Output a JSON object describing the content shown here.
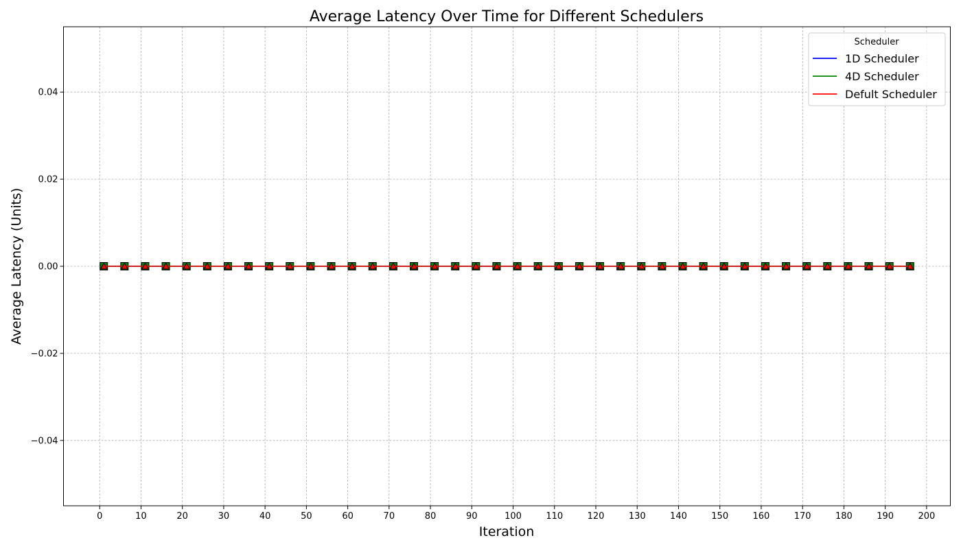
{
  "chart_data": {
    "type": "line",
    "title": "Average Latency Over Time for Different Schedulers",
    "xlabel": "Iteration",
    "ylabel": "Average Latency (Units)",
    "xlim": [
      -8.75,
      205.75
    ],
    "ylim": [
      -0.055,
      0.055
    ],
    "xticks": [
      0,
      10,
      20,
      30,
      40,
      50,
      60,
      70,
      80,
      90,
      100,
      110,
      120,
      130,
      140,
      150,
      160,
      170,
      180,
      190,
      200
    ],
    "yticks": [
      -0.04,
      -0.02,
      0.0,
      0.02,
      0.04
    ],
    "ytick_labels": [
      "−0.04",
      "−0.02",
      "0.00",
      "0.02",
      "0.04"
    ],
    "grid": true,
    "legend": {
      "title": "Scheduler",
      "position": "top-right"
    },
    "x": [
      1,
      6,
      11,
      16,
      21,
      26,
      31,
      36,
      41,
      46,
      51,
      56,
      61,
      66,
      71,
      76,
      81,
      86,
      91,
      96,
      101,
      106,
      111,
      116,
      121,
      126,
      131,
      136,
      141,
      146,
      151,
      156,
      161,
      166,
      171,
      176,
      181,
      186,
      191,
      196
    ],
    "series": [
      {
        "name": "1D Scheduler",
        "color": "#0000ff",
        "marker": "circle",
        "values": [
          0,
          0,
          0,
          0,
          0,
          0,
          0,
          0,
          0,
          0,
          0,
          0,
          0,
          0,
          0,
          0,
          0,
          0,
          0,
          0,
          0,
          0,
          0,
          0,
          0,
          0,
          0,
          0,
          0,
          0,
          0,
          0,
          0,
          0,
          0,
          0,
          0,
          0,
          0,
          0
        ]
      },
      {
        "name": "4D Scheduler",
        "color": "#008000",
        "marker": "square",
        "values": [
          0,
          0,
          0,
          0,
          0,
          0,
          0,
          0,
          0,
          0,
          0,
          0,
          0,
          0,
          0,
          0,
          0,
          0,
          0,
          0,
          0,
          0,
          0,
          0,
          0,
          0,
          0,
          0,
          0,
          0,
          0,
          0,
          0,
          0,
          0,
          0,
          0,
          0,
          0,
          0
        ]
      },
      {
        "name": "Defult Scheduler",
        "color": "#ff0000",
        "marker": "triangle",
        "values": [
          0,
          0,
          0,
          0,
          0,
          0,
          0,
          0,
          0,
          0,
          0,
          0,
          0,
          0,
          0,
          0,
          0,
          0,
          0,
          0,
          0,
          0,
          0,
          0,
          0,
          0,
          0,
          0,
          0,
          0,
          0,
          0,
          0,
          0,
          0,
          0,
          0,
          0,
          0,
          0
        ]
      }
    ]
  }
}
